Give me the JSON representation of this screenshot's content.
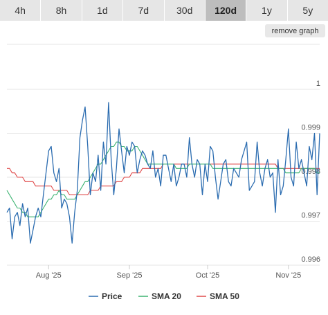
{
  "tabs": [
    {
      "label": "4h",
      "active": false
    },
    {
      "label": "8h",
      "active": false
    },
    {
      "label": "1d",
      "active": false
    },
    {
      "label": "7d",
      "active": false
    },
    {
      "label": "30d",
      "active": false
    },
    {
      "label": "120d",
      "active": true
    },
    {
      "label": "1y",
      "active": false
    },
    {
      "label": "5y",
      "active": false
    }
  ],
  "remove_graph_label": "remove graph",
  "chart_data": {
    "type": "line",
    "ylim": [
      0.996,
      1.0
    ],
    "yticks": [
      {
        "value": 1.0,
        "label": "1"
      },
      {
        "value": 0.999,
        "label": "0.999"
      },
      {
        "value": 0.998,
        "label": "0.998"
      },
      {
        "value": 0.997,
        "label": "0.997"
      },
      {
        "value": 0.996,
        "label": "0.996"
      }
    ],
    "xlim": [
      0,
      120
    ],
    "xticks": [
      {
        "value": 16,
        "label": "Aug '25"
      },
      {
        "value": 47,
        "label": "Sep '25"
      },
      {
        "value": 77,
        "label": "Oct '25"
      },
      {
        "value": 108,
        "label": "Nov '25"
      }
    ],
    "x": [
      0,
      1,
      2,
      3,
      4,
      5,
      6,
      7,
      8,
      9,
      10,
      11,
      12,
      13,
      14,
      15,
      16,
      17,
      18,
      19,
      20,
      21,
      22,
      23,
      24,
      25,
      26,
      27,
      28,
      29,
      30,
      31,
      32,
      33,
      34,
      35,
      36,
      37,
      38,
      39,
      40,
      41,
      42,
      43,
      44,
      45,
      46,
      47,
      48,
      49,
      50,
      51,
      52,
      53,
      54,
      55,
      56,
      57,
      58,
      59,
      60,
      61,
      62,
      63,
      64,
      65,
      66,
      67,
      68,
      69,
      70,
      71,
      72,
      73,
      74,
      75,
      76,
      77,
      78,
      79,
      80,
      81,
      82,
      83,
      84,
      85,
      86,
      87,
      88,
      89,
      90,
      91,
      92,
      93,
      94,
      95,
      96,
      97,
      98,
      99,
      100,
      101,
      102,
      103,
      104,
      105,
      106,
      107,
      108,
      109,
      110,
      111,
      112,
      113,
      114,
      115,
      116,
      117,
      118,
      119,
      120
    ],
    "series": [
      {
        "name": "Price",
        "color": "#2b6cb0",
        "values": [
          0.9972,
          0.9973,
          0.9966,
          0.9971,
          0.9972,
          0.9969,
          0.9974,
          0.9971,
          0.9973,
          0.9965,
          0.9968,
          0.9971,
          0.9973,
          0.9971,
          0.9976,
          0.9981,
          0.9986,
          0.9987,
          0.9981,
          0.9979,
          0.9982,
          0.9973,
          0.9975,
          0.9974,
          0.9971,
          0.9965,
          0.9972,
          0.9977,
          0.9989,
          0.9993,
          0.9996,
          0.9987,
          0.9976,
          0.9981,
          0.9979,
          0.9985,
          0.9977,
          0.9988,
          0.9983,
          0.9997,
          0.9984,
          0.9976,
          0.9982,
          0.9991,
          0.9986,
          0.9981,
          0.9987,
          0.9985,
          0.9988,
          0.9987,
          0.9981,
          0.9984,
          0.9986,
          0.9985,
          0.9983,
          0.9982,
          0.9986,
          0.998,
          0.9982,
          0.9978,
          0.9985,
          0.9985,
          0.9982,
          0.9979,
          0.9983,
          0.9978,
          0.998,
          0.9983,
          0.9983,
          0.998,
          0.9989,
          0.9983,
          0.998,
          0.9984,
          0.9983,
          0.9976,
          0.9983,
          0.9979,
          0.9987,
          0.9986,
          0.998,
          0.9975,
          0.9979,
          0.9983,
          0.9984,
          0.9979,
          0.9978,
          0.9982,
          0.9981,
          0.998,
          0.9984,
          0.9986,
          0.9988,
          0.9977,
          0.9978,
          0.9979,
          0.9988,
          0.9981,
          0.9978,
          0.9982,
          0.9984,
          0.998,
          0.9981,
          0.9972,
          0.9984,
          0.9976,
          0.9978,
          0.9984,
          0.9991,
          0.998,
          0.9978,
          0.9988,
          0.9982,
          0.9984,
          0.9981,
          0.9978,
          0.9987,
          0.9984,
          0.999,
          0.9976,
          0.999
        ]
      },
      {
        "name": "SMA 20",
        "color": "#3cb371",
        "values": [
          0.9977,
          0.9976,
          0.9975,
          0.9974,
          0.9973,
          0.9973,
          0.9972,
          0.9972,
          0.9971,
          0.9971,
          0.9971,
          0.9971,
          0.9971,
          0.9972,
          0.9973,
          0.9974,
          0.9975,
          0.9975,
          0.9976,
          0.9976,
          0.9977,
          0.9976,
          0.9976,
          0.9975,
          0.9975,
          0.9975,
          0.9975,
          0.9976,
          0.9977,
          0.9978,
          0.9979,
          0.9979,
          0.998,
          0.9981,
          0.9982,
          0.9983,
          0.9983,
          0.9984,
          0.9985,
          0.9986,
          0.9987,
          0.9987,
          0.9988,
          0.9988,
          0.9987,
          0.9987,
          0.9986,
          0.9986,
          0.9986,
          0.9987,
          0.9987,
          0.9986,
          0.9985,
          0.9984,
          0.9983,
          0.9983,
          0.9983,
          0.9983,
          0.9983,
          0.9983,
          0.9983,
          0.9983,
          0.9983,
          0.9983,
          0.9983,
          0.9982,
          0.9982,
          0.9982,
          0.9982,
          0.9982,
          0.9983,
          0.9983,
          0.9983,
          0.9983,
          0.9983,
          0.9983,
          0.9983,
          0.9983,
          0.9983,
          0.9982,
          0.9982,
          0.9982,
          0.9982,
          0.9982,
          0.9982,
          0.9982,
          0.9982,
          0.9982,
          0.9982,
          0.9982,
          0.9982,
          0.9982,
          0.9982,
          0.9982,
          0.9982,
          0.9982,
          0.9982,
          0.9982,
          0.9982,
          0.9982,
          0.9982,
          0.9982,
          0.9982,
          0.9982,
          0.9982,
          0.9982,
          0.9982,
          0.9981,
          0.9981,
          0.9981,
          0.9981,
          0.9981,
          0.9981,
          0.9982,
          0.9982,
          0.9982,
          0.9982,
          0.9982,
          0.9982,
          0.9981,
          0.9981
        ]
      },
      {
        "name": "SMA 50",
        "color": "#e04b4b",
        "values": [
          0.9982,
          0.9982,
          0.9981,
          0.9981,
          0.998,
          0.998,
          0.998,
          0.9979,
          0.9979,
          0.9979,
          0.9979,
          0.9978,
          0.9978,
          0.9978,
          0.9978,
          0.9978,
          0.9978,
          0.9978,
          0.9977,
          0.9977,
          0.9977,
          0.9977,
          0.9977,
          0.9977,
          0.9976,
          0.9976,
          0.9976,
          0.9976,
          0.9976,
          0.9976,
          0.9976,
          0.9976,
          0.9977,
          0.9977,
          0.9977,
          0.9977,
          0.9978,
          0.9978,
          0.9978,
          0.9978,
          0.9978,
          0.9978,
          0.9979,
          0.9979,
          0.9979,
          0.998,
          0.998,
          0.998,
          0.9981,
          0.9981,
          0.9981,
          0.9981,
          0.9982,
          0.9982,
          0.9982,
          0.9982,
          0.9982,
          0.9982,
          0.9982,
          0.9982,
          0.9983,
          0.9983,
          0.9983,
          0.9983,
          0.9983,
          0.9983,
          0.9983,
          0.9983,
          0.9983,
          0.9983,
          0.9983,
          0.9983,
          0.9983,
          0.9983,
          0.9983,
          0.9983,
          0.9983,
          0.9983,
          0.9983,
          0.9983,
          0.9983,
          0.9983,
          0.9983,
          0.9983,
          0.9983,
          0.9983,
          0.9983,
          0.9983,
          0.9983,
          0.9983,
          0.9983,
          0.9983,
          0.9983,
          0.9983,
          0.9983,
          0.9983,
          0.9983,
          0.9983,
          0.9983,
          0.9983,
          0.9983,
          0.9983,
          0.9983,
          0.9983,
          0.9982,
          0.9982,
          0.9982,
          0.9982,
          0.9982,
          0.9982,
          0.9982,
          0.9982,
          0.9982,
          0.9982,
          0.9982,
          0.9982,
          0.9982,
          0.9982,
          0.9982,
          0.9982,
          0.9982
        ]
      }
    ],
    "legend_position": "bottom",
    "grid": true
  }
}
